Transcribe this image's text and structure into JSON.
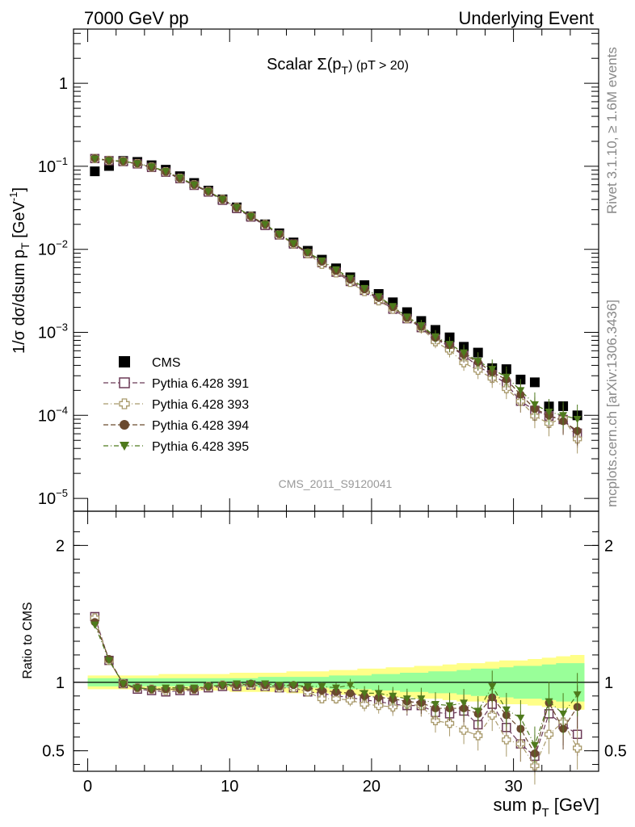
{
  "header": {
    "left": "7000 GeV pp",
    "right": "Underlying Event"
  },
  "side_text": {
    "rivet": "Rivet 3.1.10, ≥ 1.6M events",
    "mcplots": "mcplots.cern.ch [arXiv:1306.3436]"
  },
  "colors": {
    "cms": "#000000",
    "py391": "#6b3a57",
    "py393": "#a8996a",
    "py394": "#6b4a2e",
    "py395": "#4e7a1c",
    "band_inner": "#99ff99",
    "band_outer": "#ffff88"
  },
  "chart_data": [
    {
      "type": "scatter",
      "title": "Scalar Σ(pT) (pT > 20)",
      "title_main": "Scalar Σ(p",
      "title_sub": "T",
      "title_tail": ") (pT > 20)",
      "watermark": "CMS_2011_S9120041",
      "ylabel": "1/σ dσ/dsum p_T [GeV^-1]",
      "ylabel_main": "1/σ dσ/dsum p",
      "ylabel_sub": "T",
      "ylabel_unit": " [GeV",
      "ylabel_sup": "-1",
      "ylabel_close": "]",
      "yscale": "log",
      "ylim": [
        7e-06,
        4.5
      ],
      "xlim": [
        -1,
        36
      ],
      "yticks": [
        {
          "v": 1e-05,
          "base": "10",
          "exp": "−5"
        },
        {
          "v": 0.0001,
          "base": "10",
          "exp": "−4"
        },
        {
          "v": 0.001,
          "base": "10",
          "exp": "−3"
        },
        {
          "v": 0.01,
          "base": "10",
          "exp": "−2"
        },
        {
          "v": 0.1,
          "base": "10",
          "exp": "−1"
        },
        {
          "v": 1,
          "base": "1",
          "exp": ""
        }
      ],
      "legend_position": "middle-left",
      "x": [
        0.5,
        1.5,
        2.5,
        3.5,
        4.5,
        5.5,
        6.5,
        7.5,
        8.5,
        9.5,
        10.5,
        11.5,
        12.5,
        13.5,
        14.5,
        15.5,
        16.5,
        17.5,
        18.5,
        19.5,
        20.5,
        21.5,
        22.5,
        23.5,
        24.5,
        25.5,
        26.5,
        27.5,
        28.5,
        29.5,
        30.5,
        31.5,
        32.5,
        33.5,
        34.5
      ],
      "series": [
        {
          "name": "CMS",
          "marker": "square-filled",
          "values": [
            0.087,
            0.101,
            0.116,
            0.113,
            0.103,
            0.091,
            0.076,
            0.063,
            0.051,
            0.04,
            0.032,
            0.025,
            0.02,
            0.0156,
            0.0121,
            0.0096,
            0.0075,
            0.0059,
            0.0046,
            0.0037,
            0.0029,
            0.0023,
            0.00175,
            0.00137,
            0.00107,
            0.00087,
            0.00067,
            0.00057,
            0.00037,
            0.00036,
            0.00027,
            0.00025,
            0.000128,
            0.000129,
            0.0001
          ]
        },
        {
          "name": "Pythia 6.428 391",
          "marker": "square-open",
          "line": "dash",
          "values": [
            0.124,
            0.117,
            0.114,
            0.107,
            0.097,
            0.085,
            0.071,
            0.059,
            0.049,
            0.039,
            0.031,
            0.0245,
            0.0194,
            0.0149,
            0.0116,
            0.0089,
            0.0069,
            0.0053,
            0.0041,
            0.0032,
            0.0025,
            0.0019,
            0.00146,
            0.00114,
            0.00084,
            0.00067,
            0.00053,
            0.00039,
            0.00031,
            0.00024,
            0.000148,
            0.000115,
            9.8e-05,
            8.9e-05,
            6.1e-05
          ]
        },
        {
          "name": "Pythia 6.428 393",
          "marker": "cross-open",
          "line": "dashdot",
          "values": [
            0.124,
            0.118,
            0.115,
            0.108,
            0.098,
            0.086,
            0.072,
            0.06,
            0.05,
            0.04,
            0.032,
            0.025,
            0.02,
            0.015,
            0.0116,
            0.0089,
            0.0066,
            0.0052,
            0.004,
            0.0031,
            0.0024,
            0.0019,
            0.00147,
            0.00113,
            0.00077,
            0.00061,
            0.00043,
            0.00035,
            0.00028,
            0.00021,
            0.000148,
            9.8e-05,
            8e-05,
            9.2e-05,
            5.2e-05
          ]
        },
        {
          "name": "Pythia 6.428 394",
          "marker": "circle-filled",
          "line": "dash",
          "values": [
            0.125,
            0.118,
            0.115,
            0.108,
            0.098,
            0.086,
            0.072,
            0.06,
            0.05,
            0.04,
            0.032,
            0.025,
            0.02,
            0.0152,
            0.0118,
            0.0092,
            0.0071,
            0.0055,
            0.0043,
            0.0033,
            0.0026,
            0.00201,
            0.0015,
            0.00117,
            0.00086,
            0.0007,
            0.00054,
            0.00044,
            0.00033,
            0.00027,
            0.000178,
            0.00012,
            0.0001,
            8.5e-05,
            6.5e-05
          ]
        },
        {
          "name": "Pythia 6.428 395",
          "marker": "triangle-down-filled",
          "line": "dashdot",
          "values": [
            0.123,
            0.117,
            0.115,
            0.108,
            0.099,
            0.087,
            0.073,
            0.06,
            0.05,
            0.04,
            0.032,
            0.025,
            0.02,
            0.0153,
            0.0118,
            0.0092,
            0.0073,
            0.0057,
            0.0045,
            0.0034,
            0.0027,
            0.00206,
            0.00154,
            0.00121,
            0.00089,
            0.00072,
            0.00057,
            0.00045,
            0.00036,
            0.00029,
            0.0002,
            0.000135,
            0.00011,
            0.0001,
            9e-05
          ]
        }
      ]
    },
    {
      "type": "scatter",
      "xlabel": "sum p_T [GeV]",
      "xlabel_main": "sum p",
      "xlabel_sub": "T",
      "xlabel_unit": " [GeV]",
      "ylabel": "Ratio to CMS",
      "ylim": [
        0.35,
        2.25
      ],
      "xlim": [
        -1,
        36
      ],
      "yticks": [
        0.5,
        1,
        2
      ],
      "xticks": [
        0,
        10,
        20,
        30
      ],
      "x": [
        0.5,
        1.5,
        2.5,
        3.5,
        4.5,
        5.5,
        6.5,
        7.5,
        8.5,
        9.5,
        10.5,
        11.5,
        12.5,
        13.5,
        14.5,
        15.5,
        16.5,
        17.5,
        18.5,
        19.5,
        20.5,
        21.5,
        22.5,
        23.5,
        24.5,
        25.5,
        26.5,
        27.5,
        28.5,
        29.5,
        30.5,
        31.5,
        32.5,
        33.5,
        34.5
      ],
      "band": {
        "inner_lo": [
          0.97,
          0.97,
          0.97,
          0.97,
          0.97,
          0.97,
          0.97,
          0.97,
          0.97,
          0.97,
          0.97,
          0.97,
          0.96,
          0.96,
          0.96,
          0.96,
          0.96,
          0.95,
          0.95,
          0.95,
          0.94,
          0.94,
          0.93,
          0.93,
          0.92,
          0.92,
          0.91,
          0.9,
          0.9,
          0.89,
          0.88,
          0.88,
          0.87,
          0.86,
          0.86
        ],
        "inner_hi": [
          1.03,
          1.03,
          1.03,
          1.03,
          1.03,
          1.03,
          1.03,
          1.03,
          1.03,
          1.03,
          1.03,
          1.03,
          1.04,
          1.04,
          1.04,
          1.04,
          1.04,
          1.05,
          1.05,
          1.05,
          1.06,
          1.06,
          1.07,
          1.07,
          1.08,
          1.08,
          1.09,
          1.1,
          1.1,
          1.11,
          1.12,
          1.12,
          1.13,
          1.14,
          1.14
        ],
        "outer_lo": [
          0.95,
          0.95,
          0.95,
          0.95,
          0.95,
          0.94,
          0.94,
          0.94,
          0.94,
          0.94,
          0.93,
          0.93,
          0.93,
          0.93,
          0.92,
          0.92,
          0.92,
          0.91,
          0.91,
          0.9,
          0.9,
          0.89,
          0.89,
          0.88,
          0.88,
          0.87,
          0.86,
          0.86,
          0.85,
          0.84,
          0.84,
          0.83,
          0.82,
          0.81,
          0.8
        ],
        "outer_hi": [
          1.05,
          1.05,
          1.05,
          1.05,
          1.05,
          1.06,
          1.06,
          1.06,
          1.06,
          1.06,
          1.07,
          1.07,
          1.07,
          1.07,
          1.08,
          1.08,
          1.08,
          1.09,
          1.09,
          1.1,
          1.1,
          1.11,
          1.11,
          1.12,
          1.12,
          1.13,
          1.14,
          1.14,
          1.15,
          1.16,
          1.16,
          1.17,
          1.18,
          1.19,
          1.2
        ]
      },
      "series": [
        {
          "name": "Pythia 6.428 391",
          "values": [
            1.48,
            1.16,
            0.99,
            0.95,
            0.94,
            0.93,
            0.94,
            0.94,
            0.96,
            0.97,
            0.97,
            0.98,
            0.97,
            0.96,
            0.96,
            0.93,
            0.92,
            0.9,
            0.89,
            0.87,
            0.86,
            0.84,
            0.83,
            0.83,
            0.78,
            0.77,
            0.79,
            0.69,
            0.84,
            0.67,
            0.55,
            0.46,
            0.77,
            0.69,
            0.62
          ]
        },
        {
          "name": "Pythia 6.428 393",
          "values": [
            1.47,
            1.16,
            0.99,
            0.96,
            0.95,
            0.94,
            0.95,
            0.95,
            0.97,
            0.98,
            0.98,
            0.98,
            0.97,
            0.96,
            0.96,
            0.93,
            0.88,
            0.88,
            0.87,
            0.84,
            0.83,
            0.82,
            0.84,
            0.83,
            0.72,
            0.7,
            0.65,
            0.61,
            0.76,
            0.58,
            0.55,
            0.39,
            0.62,
            0.71,
            0.52
          ]
        },
        {
          "name": "Pythia 6.428 394",
          "values": [
            1.44,
            1.17,
            0.99,
            0.96,
            0.95,
            0.95,
            0.95,
            0.95,
            0.97,
            0.98,
            0.98,
            0.99,
            0.98,
            0.97,
            0.98,
            0.96,
            0.94,
            0.93,
            0.92,
            0.9,
            0.89,
            0.88,
            0.86,
            0.85,
            0.81,
            0.81,
            0.81,
            0.77,
            0.89,
            0.76,
            0.66,
            0.48,
            0.85,
            0.66,
            0.82
          ]
        },
        {
          "name": "Pythia 6.428 395",
          "values": [
            1.42,
            1.16,
            0.99,
            0.96,
            0.95,
            0.96,
            0.96,
            0.96,
            0.97,
            0.98,
            0.99,
            0.99,
            0.99,
            0.98,
            0.98,
            0.97,
            0.97,
            0.96,
            0.98,
            0.92,
            0.92,
            0.9,
            0.88,
            0.88,
            0.84,
            0.83,
            0.85,
            0.79,
            0.97,
            0.8,
            0.74,
            0.54,
            0.86,
            0.77,
            0.91
          ]
        }
      ]
    }
  ]
}
